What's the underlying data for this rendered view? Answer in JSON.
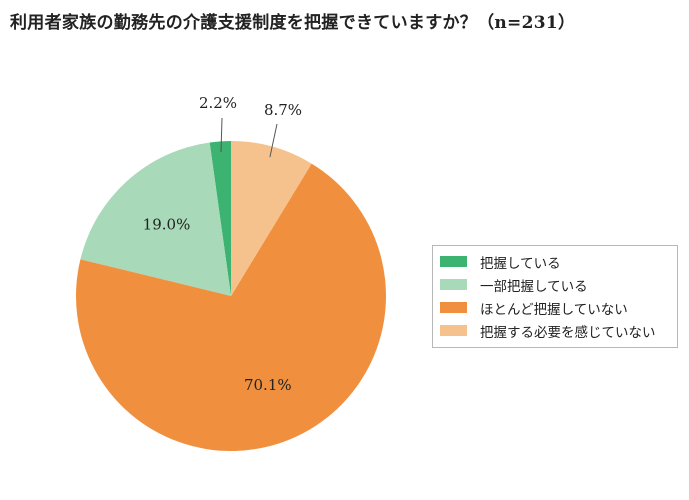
{
  "chart_data": {
    "type": "pie",
    "title": "利用者家族の勤務先の介護支援制度を把握できていますか？（n=231）",
    "categories": [
      "把握している",
      "一部把握している",
      "ほとんど把握していない",
      "把握する必要を感じていない"
    ],
    "values": [
      2.2,
      19.0,
      70.1,
      8.7
    ],
    "value_labels": [
      "2.2%",
      "19.0%",
      "70.1%",
      "8.7%"
    ],
    "colors": [
      "#3cb371",
      "#a8d9b8",
      "#f0903f",
      "#f5c28d"
    ],
    "start_angle": "12 o'clock",
    "direction": "counterclockwise",
    "legend_position": "right"
  }
}
